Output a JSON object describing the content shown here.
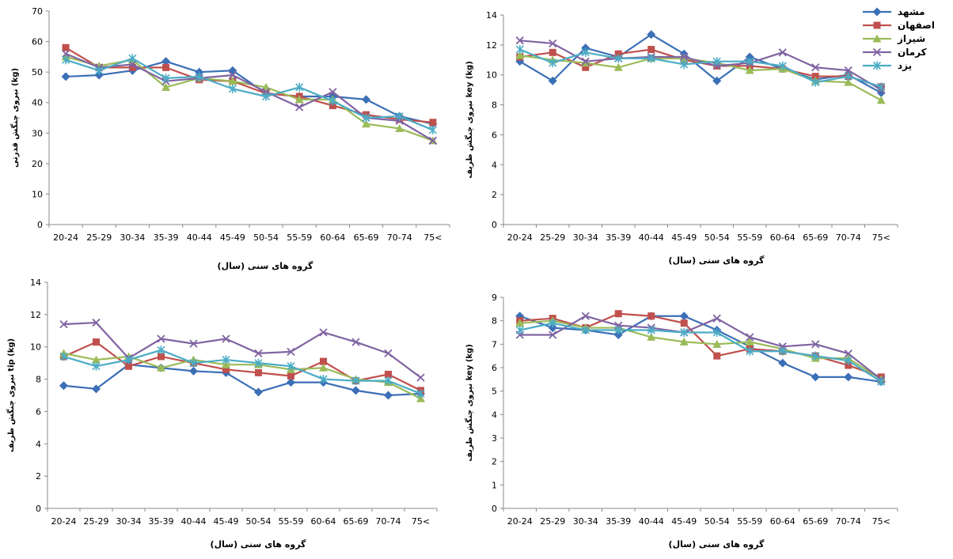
{
  "legend": {
    "items": [
      {
        "name": "مشهد",
        "color": "#3b6fb6",
        "marker": "diamond"
      },
      {
        "name": "اصفهان",
        "color": "#c0504d",
        "marker": "square"
      },
      {
        "name": "شیراز",
        "color": "#9bbb59",
        "marker": "triangle"
      },
      {
        "name": "کرمان",
        "color": "#8064a2",
        "marker": "x"
      },
      {
        "name": "یزد",
        "color": "#4bacc6",
        "marker": "asterisk"
      }
    ]
  },
  "chart_data": [
    {
      "type": "line",
      "ylabel": "نیروی چنگش قدرتی (kg)",
      "xlabel": "گروه های سنی (سال)",
      "ylim": [
        0,
        70
      ],
      "yticks": [
        0,
        10,
        20,
        30,
        40,
        50,
        60,
        70
      ],
      "categories": [
        "20-24",
        "25-29",
        "30-34",
        "35-39",
        "40-44",
        "45-49",
        "50-54",
        "55-59",
        "60-64",
        "65-69",
        "70-74",
        "75<"
      ],
      "series": [
        {
          "name": "مشهد",
          "values": [
            48.5,
            49,
            50.5,
            53.5,
            50,
            50.5,
            43,
            42,
            42,
            41,
            35.5,
            33
          ]
        },
        {
          "name": "اصفهان",
          "values": [
            58,
            51.5,
            51.5,
            51.5,
            47.5,
            47,
            43,
            42,
            39,
            36,
            34.5,
            33.5
          ]
        },
        {
          "name": "شیراز",
          "values": [
            55,
            52,
            54,
            45,
            48,
            47,
            45,
            41,
            41,
            33,
            31.5,
            27.5
          ]
        },
        {
          "name": "کرمان",
          "values": [
            56,
            51.5,
            52.5,
            47,
            48,
            49,
            43.5,
            38.5,
            43.5,
            35,
            34,
            27.5
          ]
        },
        {
          "name": "یزد",
          "values": [
            54,
            50.5,
            54.5,
            48,
            48.5,
            44.5,
            42,
            45,
            40.5,
            35,
            35.5,
            31
          ]
        }
      ]
    },
    {
      "type": "line",
      "ylabel": "نیروی چنگش ظریف key (kg)",
      "xlabel": "گروه های سنی (سال)",
      "ylim": [
        0,
        14
      ],
      "yticks": [
        0,
        2,
        4,
        6,
        8,
        10,
        12,
        14
      ],
      "categories": [
        "20-24",
        "25-29",
        "30-34",
        "35-39",
        "40-44",
        "45-49",
        "50-54",
        "55-59",
        "60-64",
        "65-69",
        "70-74",
        "75<"
      ],
      "series": [
        {
          "name": "مشهد",
          "values": [
            10.9,
            9.6,
            11.8,
            11.2,
            12.7,
            11.4,
            9.6,
            11.2,
            10.4,
            9.7,
            10,
            8.8
          ]
        },
        {
          "name": "اصفهان",
          "values": [
            11.2,
            11.5,
            10.5,
            11.4,
            11.7,
            11,
            10.6,
            10.6,
            10.4,
            9.9,
            9.9,
            9.2
          ]
        },
        {
          "name": "شیراز",
          "values": [
            11.3,
            11,
            10.8,
            10.5,
            11.1,
            11.1,
            10.8,
            10.3,
            10.4,
            9.6,
            9.5,
            8.3
          ]
        },
        {
          "name": "کرمان",
          "values": [
            12.3,
            12.1,
            10.9,
            11.1,
            11.2,
            11.2,
            10.6,
            10.8,
            11.5,
            10.5,
            10.3,
            9
          ]
        },
        {
          "name": "یزد",
          "values": [
            11.7,
            10.8,
            11.5,
            11.1,
            11.1,
            10.7,
            10.9,
            10.9,
            10.6,
            9.5,
            9.9,
            9.2
          ]
        }
      ]
    },
    {
      "type": "line",
      "ylabel": "نیروی چنگش ظریف tip (kg)",
      "xlabel": "گروه های سنی (سال)",
      "ylim": [
        0,
        14
      ],
      "yticks": [
        0,
        2,
        4,
        6,
        8,
        10,
        12,
        14
      ],
      "categories": [
        "20-24",
        "25-29",
        "30-34",
        "35-39",
        "40-44",
        "45-49",
        "50-54",
        "55-59",
        "60-64",
        "65-69",
        "70-74",
        "75<"
      ],
      "series": [
        {
          "name": "مشهد",
          "values": [
            7.6,
            7.4,
            8.9,
            8.7,
            8.5,
            8.4,
            7.2,
            7.8,
            7.8,
            7.3,
            7,
            7.1
          ]
        },
        {
          "name": "اصفهان",
          "values": [
            9.4,
            10.3,
            8.8,
            9.4,
            9,
            8.6,
            8.4,
            8.2,
            9.1,
            7.9,
            8.3,
            7.3
          ]
        },
        {
          "name": "شیراز",
          "values": [
            9.6,
            9.2,
            9.4,
            8.7,
            9.2,
            8.9,
            8.9,
            8.6,
            8.7,
            8,
            7.8,
            6.8
          ]
        },
        {
          "name": "کرمان",
          "values": [
            11.4,
            11.5,
            9.3,
            10.5,
            10.2,
            10.5,
            9.6,
            9.7,
            10.9,
            10.3,
            9.6,
            8.1
          ]
        },
        {
          "name": "یزد",
          "values": [
            9.4,
            8.8,
            9.2,
            9.8,
            9,
            9.2,
            9,
            8.8,
            8,
            7.9,
            7.9,
            7.1
          ]
        }
      ]
    },
    {
      "type": "line",
      "ylabel": "نیروی چنگش ظریف key (kg)",
      "xlabel": "گروه های سنی (سال)",
      "ylim": [
        0,
        9
      ],
      "yticks": [
        0,
        1,
        2,
        3,
        4,
        5,
        6,
        7,
        8,
        9
      ],
      "categories": [
        "20-24",
        "25-29",
        "30-34",
        "35-39",
        "40-44",
        "45-49",
        "50-54",
        "55-59",
        "60-64",
        "65-69",
        "70-74",
        "75<"
      ],
      "series": [
        {
          "name": "مشهد",
          "values": [
            8.2,
            7.7,
            7.6,
            7.4,
            8.2,
            8.2,
            7.6,
            6.9,
            6.2,
            5.6,
            5.6,
            5.4
          ]
        },
        {
          "name": "اصفهان",
          "values": [
            8,
            8.1,
            7.7,
            8.3,
            8.2,
            7.9,
            6.5,
            6.8,
            6.7,
            6.5,
            6.1,
            5.6
          ]
        },
        {
          "name": "شیراز",
          "values": [
            7.9,
            8,
            7.7,
            7.7,
            7.3,
            7.1,
            7,
            7.1,
            6.8,
            6.4,
            6.4,
            5.5
          ]
        },
        {
          "name": "کرمان",
          "values": [
            7.4,
            7.4,
            8.2,
            7.8,
            7.7,
            7.5,
            8.1,
            7.3,
            6.9,
            7,
            6.6,
            5.5
          ]
        },
        {
          "name": "یزد",
          "values": [
            7.6,
            7.9,
            7.6,
            7.6,
            7.6,
            7.5,
            7.5,
            6.7,
            6.7,
            6.5,
            6.3,
            5.4
          ]
        }
      ]
    }
  ]
}
